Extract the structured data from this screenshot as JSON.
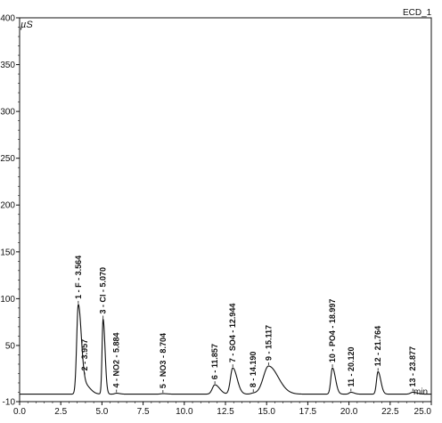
{
  "chart_data": {
    "type": "line",
    "title": "",
    "trace_name": "ECD_1",
    "ylabel": "µS",
    "xlabel": "min",
    "xlim": [
      0.0,
      25.0
    ],
    "ylim": [
      -10,
      400
    ],
    "x_ticks": [
      "0.0",
      "2.5",
      "5.0",
      "7.5",
      "10.0",
      "12.5",
      "15.0",
      "17.5",
      "20.0",
      "22.5",
      "25.0"
    ],
    "y_ticks": [
      "-10",
      "50",
      "100",
      "150",
      "200",
      "250",
      "300",
      "350",
      "400"
    ],
    "grid": false,
    "baseline": -2,
    "peaks": [
      {
        "rt": 3.564,
        "height": 95,
        "width": 0.14,
        "label": "1 - F - 3.564"
      },
      {
        "rt": 3.957,
        "height": 10,
        "width": 0.25,
        "label": "2 - 3.957"
      },
      {
        "rt": 5.07,
        "height": 80,
        "width": 0.09,
        "label": "3 - Cl - 5.070"
      },
      {
        "rt": 5.884,
        "height": 1,
        "width": 0.15,
        "label": "4 - NO2 - 5.884"
      },
      {
        "rt": 8.704,
        "height": 0.5,
        "width": 0.2,
        "label": "5 - NO3 - 8.704"
      },
      {
        "rt": 11.857,
        "height": 10,
        "width": 0.22,
        "label": "6 - 11.857"
      },
      {
        "rt": 12.944,
        "height": 28,
        "width": 0.2,
        "label": "7 - SO4 - 12.944"
      },
      {
        "rt": 14.19,
        "height": 1,
        "width": 0.2,
        "label": "8 - 14.190"
      },
      {
        "rt": 15.117,
        "height": 30,
        "width": 0.45,
        "label": "9 - 15.117"
      },
      {
        "rt": 18.997,
        "height": 28,
        "width": 0.14,
        "label": "10 - PO4 - 18.997"
      },
      {
        "rt": 20.12,
        "height": 2,
        "width": 0.15,
        "label": "11 - 20.120"
      },
      {
        "rt": 21.764,
        "height": 24,
        "width": 0.13,
        "label": "12 - 21.764"
      },
      {
        "rt": 23.877,
        "height": 2,
        "width": 0.2,
        "label": "13 - 23.877"
      }
    ]
  }
}
